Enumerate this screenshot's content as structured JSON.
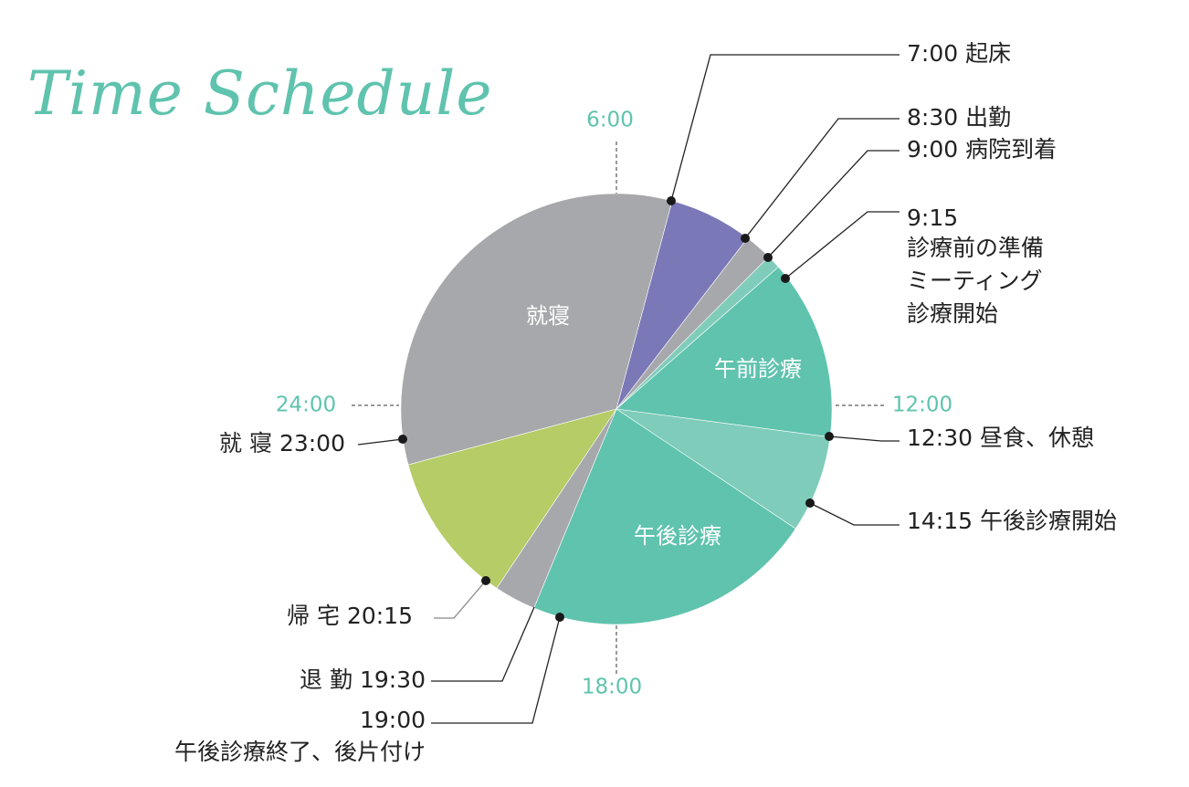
{
  "chart_data": {
    "type": "pie",
    "title": "Time Schedule",
    "clock_labels": [
      "6:00",
      "12:00",
      "18:00",
      "24:00"
    ],
    "segments": [
      {
        "start": "23:00",
        "end": "7:00",
        "label": "就寝",
        "color": "#a7a8ab"
      },
      {
        "start": "7:00",
        "end": "8:30",
        "label": "",
        "color": "#7b78b8"
      },
      {
        "start": "8:30",
        "end": "9:00",
        "label": "",
        "color": "#a7a8ab"
      },
      {
        "start": "9:00",
        "end": "9:15",
        "label": "",
        "color": "#80ccbb"
      },
      {
        "start": "9:15",
        "end": "12:30",
        "label": "午前診療",
        "color": "#5fc3ae"
      },
      {
        "start": "12:30",
        "end": "14:15",
        "label": "",
        "color": "#80ccbb"
      },
      {
        "start": "14:15",
        "end": "19:30",
        "label": "午後診療",
        "color": "#5fc3ae"
      },
      {
        "start": "19:30",
        "end": "20:15",
        "label": "",
        "color": "#a7a8ab"
      },
      {
        "start": "20:15",
        "end": "23:00",
        "label": "",
        "color": "#b5cc67"
      }
    ],
    "events": [
      {
        "time": "7:00",
        "text": "7:00  起床"
      },
      {
        "time": "8:30",
        "text": "8:30  出勤"
      },
      {
        "time": "9:00",
        "text": "9:00  病院到着"
      },
      {
        "time": "9:15",
        "text": "9:15",
        "lines": [
          "診療前の準備",
          "ミーティング",
          "診療開始"
        ]
      },
      {
        "time": "12:30",
        "text": "12:30  昼食、休憩"
      },
      {
        "time": "14:15",
        "text": "14:15  午後診療開始"
      },
      {
        "time": "19:00",
        "text": "19:00",
        "lines": [
          "午後診療終了、後片付け"
        ]
      },
      {
        "time": "19:30",
        "text": "退 勤  19:30"
      },
      {
        "time": "20:15",
        "text": "帰 宅  20:15"
      },
      {
        "time": "23:00",
        "text": "就 寝  23:00"
      }
    ]
  }
}
